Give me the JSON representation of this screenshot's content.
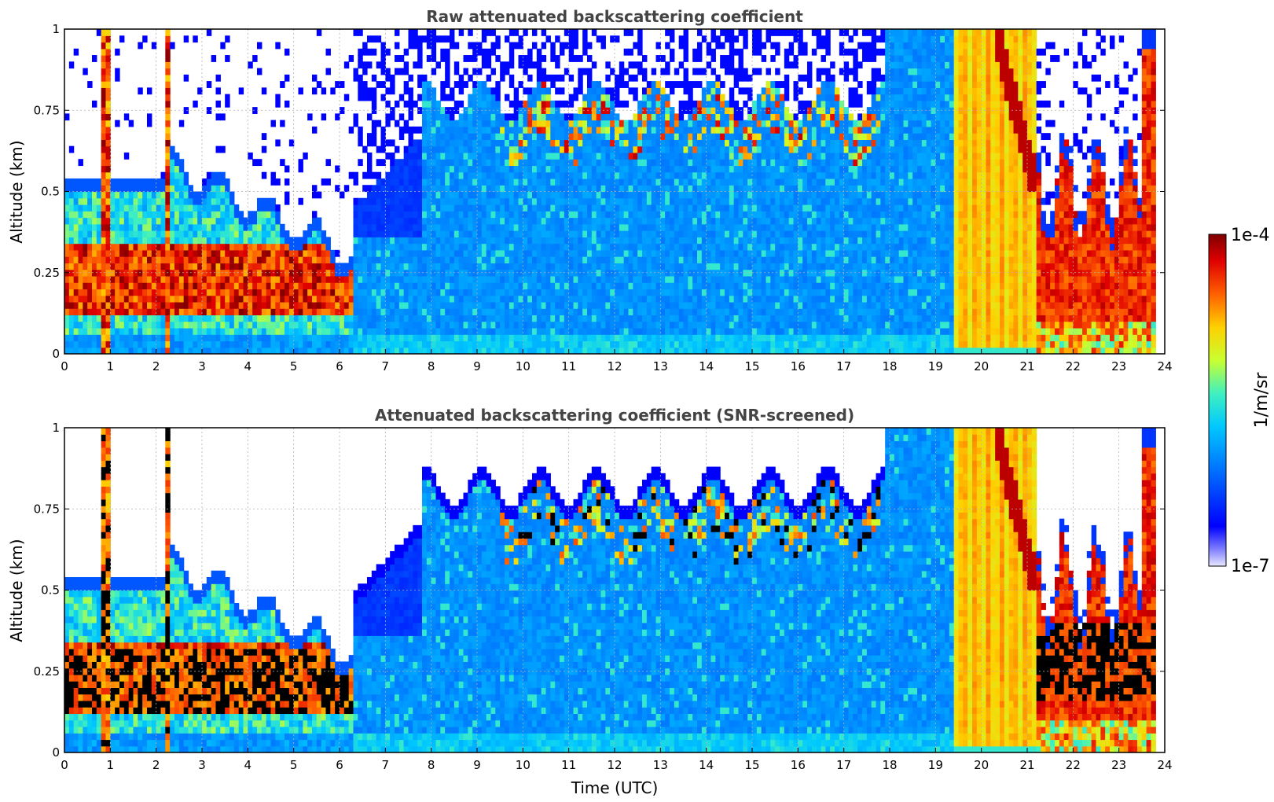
{
  "chart_data": [
    {
      "type": "heatmap",
      "title": "Raw attenuated backscattering coefficient",
      "xlabel": "",
      "ylabel": "Altitude (km)",
      "xlim": [
        0,
        24
      ],
      "ylim": [
        0,
        1
      ],
      "x_ticks": [
        "0",
        "1",
        "2",
        "3",
        "4",
        "5",
        "6",
        "7",
        "8",
        "9",
        "10",
        "11",
        "12",
        "13",
        "14",
        "15",
        "16",
        "17",
        "18",
        "19",
        "20",
        "21",
        "22",
        "23",
        "24"
      ],
      "y_ticks": [
        "0",
        "0.25",
        "0.5",
        "0.75",
        "1"
      ],
      "grid": true,
      "screened": false,
      "regimes": [
        {
          "from": 0.0,
          "to": 2.3,
          "description": "low aerosol layer up to 0.5 km with strong peaks near 1 h and 2 h"
        },
        {
          "from": 2.3,
          "to": 6.3,
          "description": "aerosol layer 0.1-0.55 km decreasing"
        },
        {
          "from": 6.3,
          "to": 19.5,
          "description": "boundary layer growing to 0.8-1 km, cloud tops near 0.75 km"
        },
        {
          "from": 19.5,
          "to": 21.2,
          "description": "strong backscatter full column (fog/rain)"
        },
        {
          "from": 21.2,
          "to": 23.8,
          "description": "low dense layer 0-0.5 km"
        }
      ]
    },
    {
      "type": "heatmap",
      "title": "Attenuated backscattering coefficient (SNR-screened)",
      "xlabel": "Time (UTC)",
      "ylabel": "Altitude (km)",
      "xlim": [
        0,
        24
      ],
      "ylim": [
        0,
        1
      ],
      "x_ticks": [
        "0",
        "1",
        "2",
        "3",
        "4",
        "5",
        "6",
        "7",
        "8",
        "9",
        "10",
        "11",
        "12",
        "13",
        "14",
        "15",
        "16",
        "17",
        "18",
        "19",
        "20",
        "21",
        "22",
        "23",
        "24"
      ],
      "y_ticks": [
        "0",
        "0.25",
        "0.5",
        "0.75",
        "1"
      ],
      "grid": true,
      "screened": true
    }
  ],
  "colorbar": {
    "label": "1/m/sr",
    "max_label": "1e-4",
    "min_label": "1e-7",
    "colormap": "jet",
    "colors": [
      "#e8e8ff",
      "#0000ff",
      "#0078ff",
      "#00c8ff",
      "#50ffb0",
      "#c8ff30",
      "#ffd000",
      "#ff6000",
      "#e00000",
      "#7f0000"
    ]
  }
}
